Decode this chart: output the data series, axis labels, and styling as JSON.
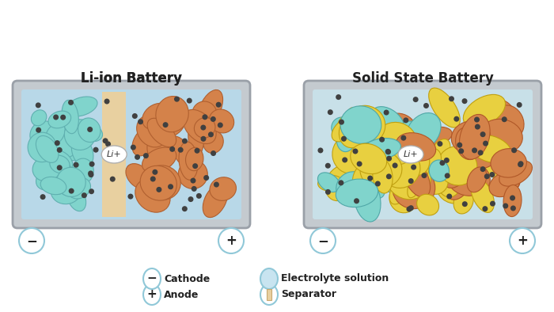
{
  "bg_color": "#ffffff",
  "legend": {
    "anode_label": "Anode",
    "cathode_label": "Cathode",
    "separator_label": "Separator",
    "electrolyte_label": "Electrolyte solution"
  },
  "colors": {
    "cyan_particle": "#80d4cc",
    "orange_particle": "#d4824a",
    "yellow_particle": "#e8d040",
    "dot_color": "#444444",
    "separator_bg": "#e8d0a0",
    "border_circle": "#90c8d8",
    "battery_outer": "#c0c8cc",
    "battery_inner_li": "#b8d8e8",
    "battery_inner_ss": "#c8e0e8",
    "sep_fill": "#e8d0a0"
  },
  "figsize": [
    7.0,
    3.94
  ],
  "dpi": 100
}
